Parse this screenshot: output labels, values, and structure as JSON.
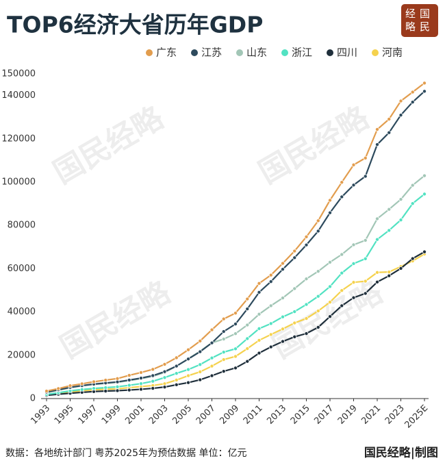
{
  "chart_data": {
    "type": "line",
    "title": "TOP6经济大省历年GDP",
    "logo": [
      "经国",
      "略民"
    ],
    "watermark": "国民经略",
    "note": "数据：各地统计部门  粤苏2025年为预估数据 单位：亿元",
    "credit": "国民经略|制图",
    "legend": "top-right",
    "grid": false,
    "categories": [
      "1993",
      null,
      "1995",
      null,
      "1997",
      null,
      "1999",
      null,
      "2001",
      null,
      "2003",
      null,
      "2005",
      null,
      "2007",
      null,
      "2009",
      null,
      "2011",
      null,
      "2013",
      null,
      "2015",
      null,
      "2017",
      null,
      "2019",
      null,
      "2021",
      null,
      "2023",
      null,
      "2025E"
    ],
    "ylim": [
      0,
      150000
    ],
    "yticks": [
      0,
      20000,
      40000,
      60000,
      80000,
      100000,
      120000,
      140000,
      150000
    ],
    "series": [
      {
        "name": "广东",
        "color": "#e29d4e",
        "values": [
          3469,
          4619,
          5934,
          6835,
          7775,
          8531,
          9250,
          10741,
          12039,
          13502,
          15845,
          18865,
          22557,
          26588,
          31777,
          36797,
          39483,
          46013,
          53210,
          57068,
          62475,
          68173,
          74732,
          82163,
          91649,
          99945,
          107987,
          111152,
          124370,
          129119,
          137500,
          141634,
          145800
        ]
      },
      {
        "name": "江苏",
        "color": "#2d4a5d",
        "values": [
          2998,
          4057,
          5155,
          6004,
          6680,
          7200,
          7698,
          8554,
          9457,
          10607,
          12443,
          15004,
          18306,
          21645,
          25741,
          30982,
          34457,
          41425,
          49110,
          54058,
          59753,
          65088,
          71000,
          77388,
          85870,
          93208,
          98656,
          102719,
          117392,
          122876,
          131000,
          137008,
          142000
        ]
      },
      {
        "name": "山东",
        "color": "#a2c6b6",
        "values": [
          2770,
          3844,
          4953,
          5883,
          6537,
          7021,
          7494,
          8337,
          9195,
          10275,
          12078,
          15022,
          18367,
          21900,
          25777,
          27500,
          30000,
          34000,
          39000,
          42900,
          46500,
          50800,
          55300,
          58800,
          63000,
          66600,
          71068,
          73129,
          83096,
          87435,
          92069,
          98566,
          103000
        ]
      },
      {
        "name": "浙江",
        "color": "#52e2c2",
        "values": [
          1926,
          2689,
          3558,
          4189,
          4686,
          5053,
          5443,
          6141,
          6898,
          8004,
          9705,
          11649,
          13418,
          15718,
          18754,
          21463,
          22990,
          27722,
          32319,
          34665,
          37757,
          40173,
          43500,
          47251,
          51768,
          58003,
          62352,
          64613,
          73516,
          77715,
          82553,
          90131,
          94500
        ]
      },
      {
        "name": "四川",
        "color": "#1f2f3b",
        "values": [
          1486,
          2001,
          2443,
          2871,
          3241,
          3474,
          3649,
          3928,
          4293,
          4725,
          5333,
          6380,
          7385,
          8690,
          10562,
          12601,
          14151,
          17185,
          21027,
          23873,
          26392,
          28537,
          30053,
          32935,
          37905,
          42902,
          46616,
          48599,
          53851,
          56750,
          60133,
          64697,
          67800
        ]
      },
      {
        "name": "河南",
        "color": "#f5d24e",
        "values": [
          1661,
          2217,
          2988,
          3635,
          4041,
          4308,
          4518,
          5053,
          5533,
          6035,
          6868,
          8554,
          10588,
          12363,
          15012,
          18019,
          19480,
          23092,
          26931,
          29599,
          32191,
          34938,
          37002,
          40472,
          44553,
          49936,
          53717,
          54259,
          58300,
          58500,
          61000,
          63590,
          66800
        ]
      }
    ]
  }
}
